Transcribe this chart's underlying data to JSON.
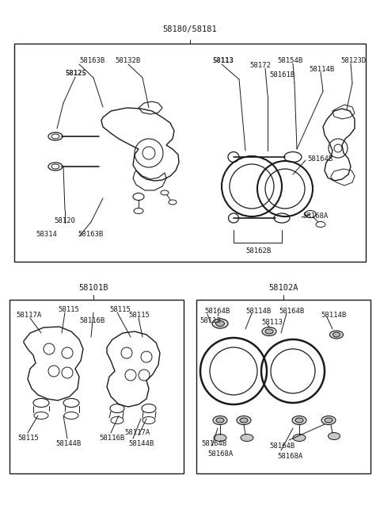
{
  "bg_color": "#ffffff",
  "line_color": "#1a1a1a",
  "text_color": "#1a1a1a",
  "title_top": "58180/58181",
  "title_bot_left": "58101B",
  "title_bot_right": "58102A",
  "fs": 6.5,
  "fs_bold": 7.0,
  "fs_title": 7.5
}
